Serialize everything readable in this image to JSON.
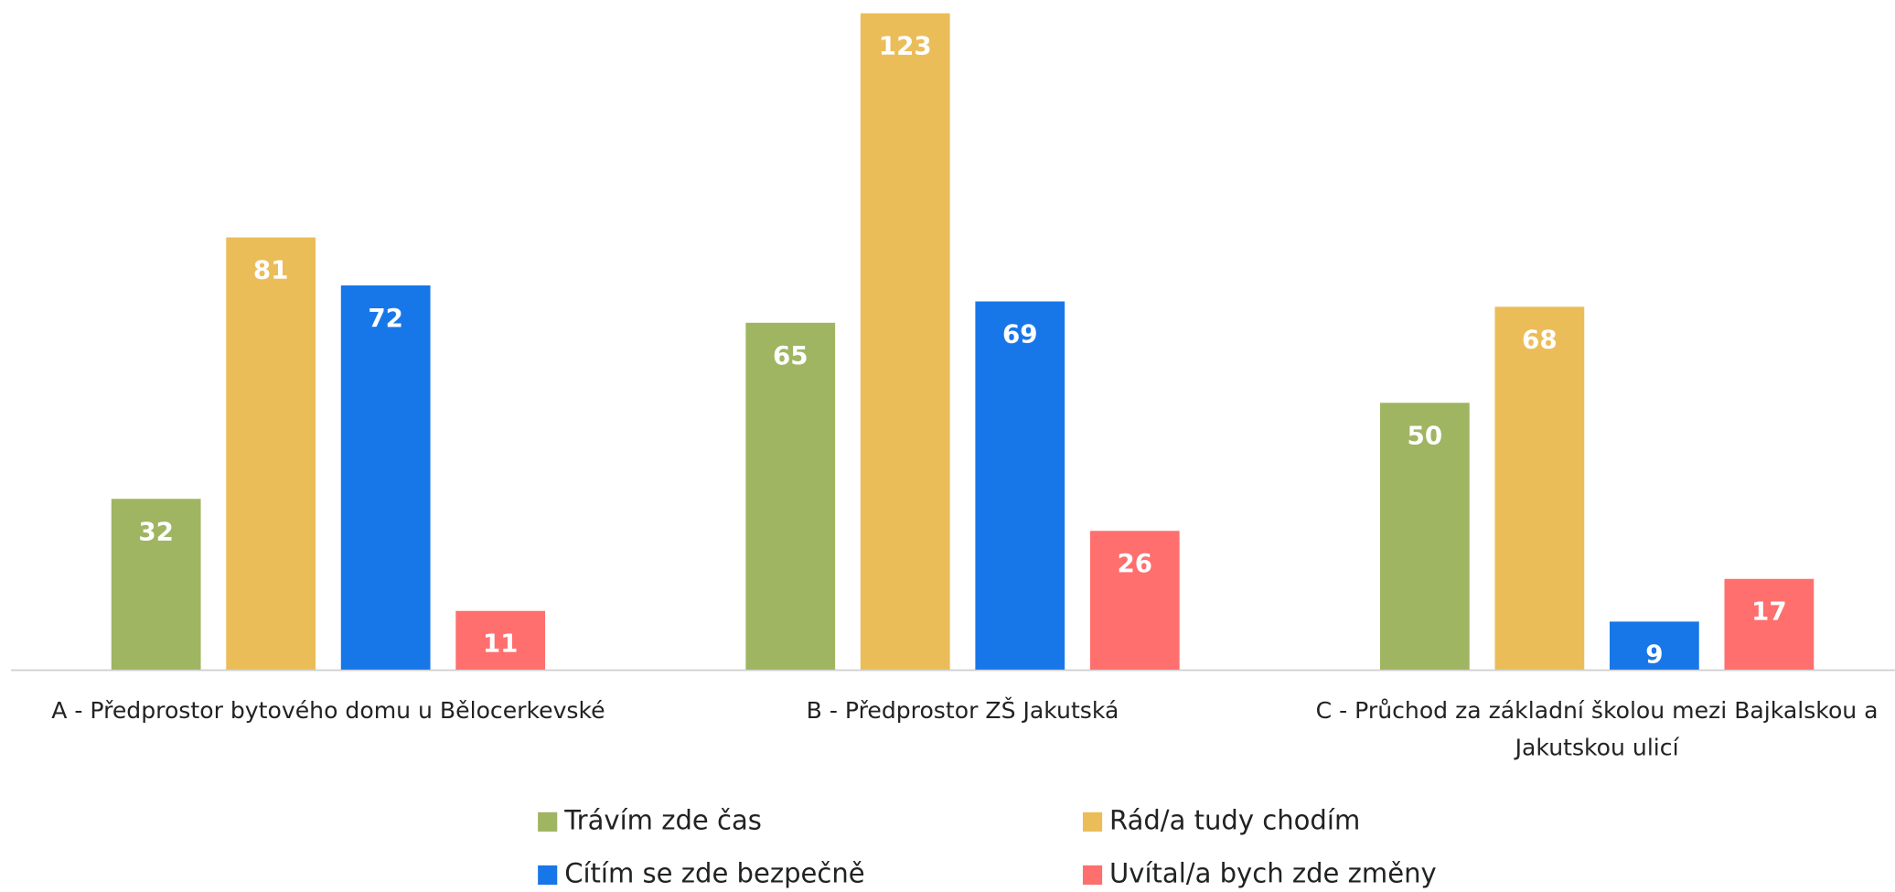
{
  "chart_data": {
    "type": "bar",
    "categories": [
      "A - Předprostor bytového domu u Bělocerkevské",
      "B - Předprostor ZŠ Jakutská",
      "C - Průchod za základní školou mezi Bajkalskou a Jakutskou ulicí"
    ],
    "series": [
      {
        "name": "Trávím zde čas",
        "color": "#9fb562",
        "values": [
          32,
          65,
          50
        ]
      },
      {
        "name": "Rád/a tudy chodím",
        "color": "#ebbd58",
        "values": [
          81,
          123,
          68
        ]
      },
      {
        "name": "Cítím se zde bezpečně",
        "color": "#1877e8",
        "values": [
          72,
          69,
          9
        ]
      },
      {
        "name": "Uvítal/a bych zde změny",
        "color": "#fe6f6e",
        "values": [
          11,
          26,
          17
        ]
      }
    ]
  }
}
